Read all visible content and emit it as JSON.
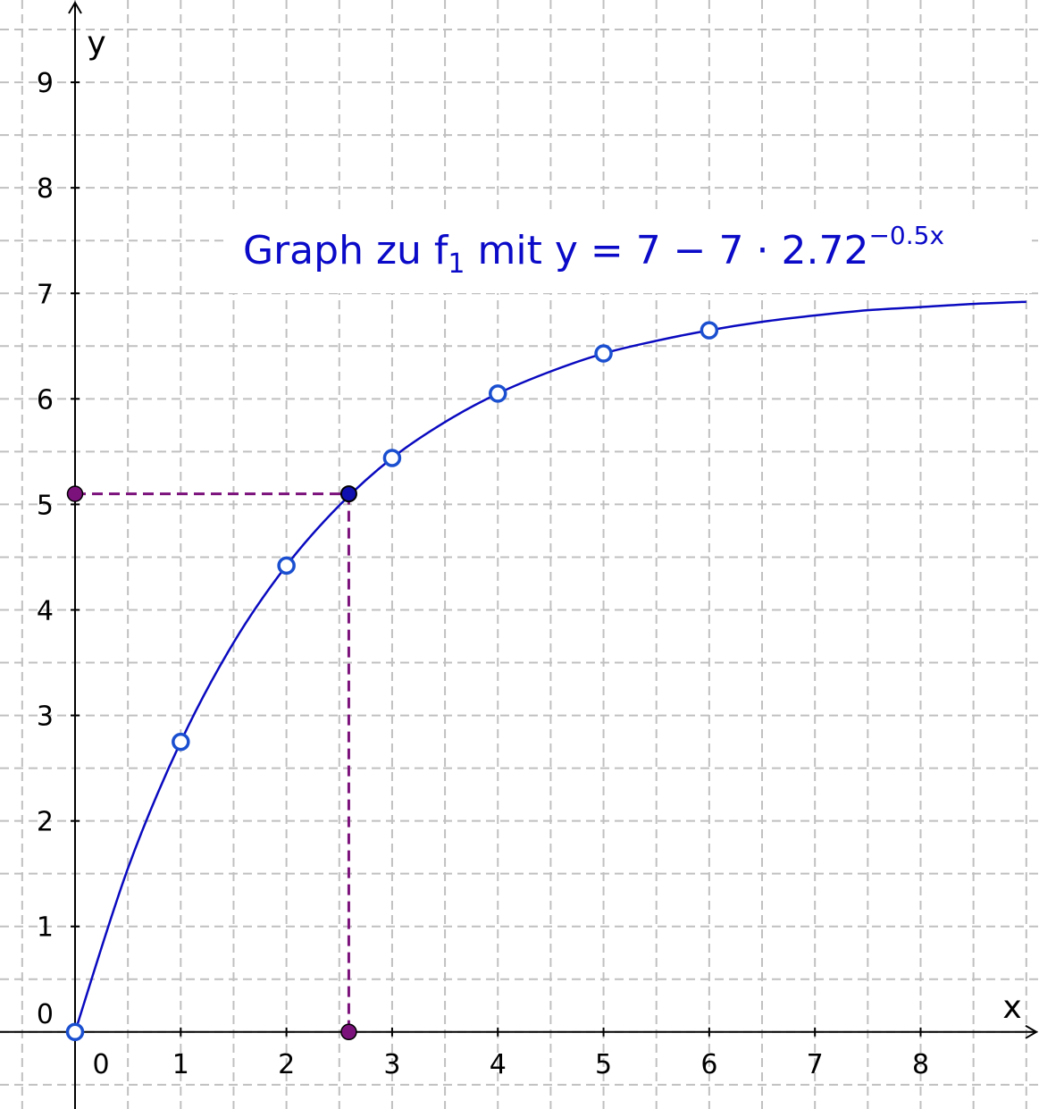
{
  "chart_data": {
    "type": "line",
    "xlim": [
      -0.71,
      9.12
    ],
    "ylim": [
      -0.73,
      9.78
    ],
    "xticks": [
      0,
      1,
      2,
      3,
      4,
      5,
      6,
      7,
      8
    ],
    "yticks": [
      0,
      1,
      2,
      3,
      4,
      5,
      6,
      7,
      8,
      9
    ],
    "grid": true,
    "grid_step": 0.5,
    "x_label": "x",
    "y_label": "y",
    "annotation": {
      "text": "Graph zu f",
      "subscript": "1",
      "text_after": " mit y  = 7 − 7 · 2.72",
      "superscript": "−0.5x",
      "color": "#0a0ac8"
    },
    "curve": {
      "color": "#0a0ac0",
      "x": [
        0,
        0.5,
        1,
        1.5,
        2,
        2.5,
        3,
        3.5,
        4,
        4.5,
        5,
        5.5,
        6,
        6.5,
        7,
        7.5,
        8,
        8.5,
        9
      ],
      "values": [
        0,
        1.55,
        2.75,
        3.69,
        4.42,
        4.99,
        5.44,
        5.78,
        6.05,
        6.26,
        6.43,
        6.55,
        6.65,
        6.73,
        6.79,
        6.84,
        6.87,
        6.9,
        6.92
      ]
    },
    "points": {
      "color": "#1a4fd0",
      "x": [
        0,
        1,
        2,
        3,
        4,
        5,
        6
      ],
      "values": [
        0,
        2.75,
        4.42,
        5.44,
        6.05,
        6.43,
        6.65
      ]
    },
    "highlight": {
      "x": 2.59,
      "y": 5.1,
      "color": "#1010b0",
      "guide_color": "#7b117b"
    }
  }
}
